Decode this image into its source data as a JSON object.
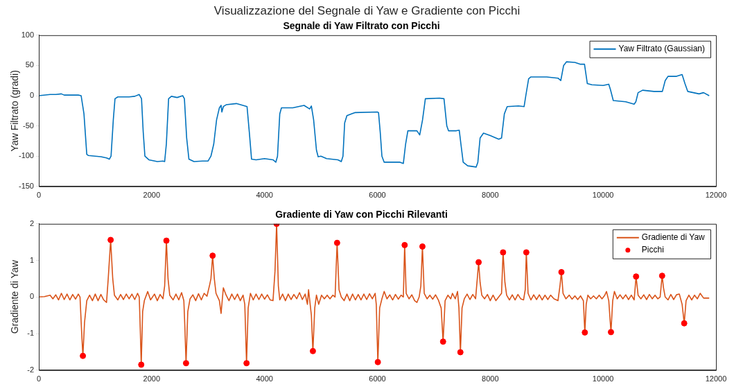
{
  "chart_data": [
    {
      "type": "line",
      "title": "Visualizzazione del Segnale di Yaw e Gradiente con Picchi",
      "subtitle": "Segnale di Yaw Filtrato con Picchi",
      "ylabel": "Yaw Filtrato (gradi)",
      "xlim": [
        0,
        12000
      ],
      "xticks": [
        0,
        2000,
        4000,
        6000,
        8000,
        10000,
        12000
      ],
      "ylim": [
        -150,
        100
      ],
      "yticks": [
        -150,
        -100,
        -50,
        0,
        50,
        100
      ],
      "legend": "top right",
      "series": [
        {
          "name": "Yaw Filtrato (Gaussian)",
          "color": "#0072bd",
          "x": [
            0,
            200,
            300,
            400,
            450,
            600,
            700,
            750,
            800,
            850,
            880,
            1000,
            1100,
            1200,
            1250,
            1280,
            1320,
            1350,
            1400,
            1500,
            1600,
            1700,
            1780,
            1820,
            1850,
            1880,
            1950,
            2100,
            2200,
            2230,
            2260,
            2300,
            2350,
            2450,
            2550,
            2580,
            2620,
            2660,
            2750,
            2900,
            3000,
            3050,
            3100,
            3150,
            3200,
            3230,
            3244,
            3270,
            3320,
            3500,
            3650,
            3690,
            3730,
            3770,
            3850,
            4000,
            4150,
            4200,
            4230,
            4270,
            4300,
            4500,
            4700,
            4800,
            4830,
            4870,
            4920,
            4950,
            5000,
            5100,
            5300,
            5360,
            5390,
            5420,
            5460,
            5600,
            6000,
            6020,
            6050,
            6080,
            6120,
            6200,
            6400,
            6460,
            6500,
            6540,
            6700,
            6750,
            6800,
            6850,
            7100,
            7180,
            7230,
            7260,
            7400,
            7450,
            7480,
            7520,
            7600,
            7750,
            7780,
            7820,
            7880,
            8000,
            8150,
            8200,
            8250,
            8300,
            8500,
            8600,
            8630,
            8680,
            8720,
            9000,
            9200,
            9250,
            9300,
            9350,
            9500,
            9600,
            9670,
            9720,
            9800,
            10000,
            10100,
            10130,
            10180,
            10400,
            10550,
            10580,
            10620,
            10700,
            10900,
            11050,
            11100,
            11150,
            11300,
            11400,
            11450,
            11500,
            11700,
            11780,
            11880
          ],
          "values": [
            0,
            2,
            2,
            3,
            1,
            1,
            1,
            0,
            -30,
            -97,
            -99,
            -100,
            -101,
            -103,
            -105,
            -100,
            -40,
            -5,
            -2,
            -2,
            -2,
            -1,
            2,
            -5,
            -60,
            -100,
            -106,
            -109,
            -108,
            -109,
            -80,
            -5,
            -1,
            -3,
            0,
            -5,
            -70,
            -105,
            -109,
            -108,
            -108,
            -100,
            -80,
            -40,
            -20,
            -16,
            -27,
            -18,
            -15,
            -13,
            -17,
            -18,
            -60,
            -105,
            -106,
            -104,
            -106,
            -110,
            -100,
            -30,
            -20,
            -20,
            -16,
            -22,
            -17,
            -40,
            -90,
            -101,
            -100,
            -104,
            -106,
            -109,
            -100,
            -45,
            -33,
            -28,
            -27,
            -28,
            -60,
            -100,
            -110,
            -110,
            -110,
            -112,
            -80,
            -58,
            -58,
            -65,
            -40,
            -5,
            -4,
            -5,
            -50,
            -58,
            -58,
            -57,
            -80,
            -110,
            -116,
            -118,
            -110,
            -70,
            -62,
            -66,
            -72,
            -70,
            -30,
            -18,
            -17,
            -18,
            0,
            28,
            31,
            31,
            29,
            25,
            50,
            56,
            55,
            52,
            52,
            20,
            18,
            17,
            19,
            10,
            -8,
            -10,
            -14,
            -10,
            5,
            9,
            7,
            7,
            25,
            32,
            32,
            35,
            20,
            7,
            3,
            5,
            0
          ]
        }
      ]
    },
    {
      "type": "line",
      "title": "Gradiente di Yaw con Picchi Rilevanti",
      "ylabel": "Gradiente di Yaw",
      "xlim": [
        0,
        12000
      ],
      "xticks": [
        0,
        2000,
        4000,
        6000,
        8000,
        10000,
        12000
      ],
      "ylim": [
        -2,
        2
      ],
      "yticks": [
        -2,
        -1,
        0,
        1,
        2
      ],
      "legend": "top right",
      "series": [
        {
          "name": "Gradiente di Yaw",
          "color": "#d95319",
          "x": [
            0,
            100,
            200,
            250,
            300,
            350,
            400,
            450,
            500,
            550,
            600,
            650,
            700,
            730,
            760,
            781,
            810,
            850,
            900,
            950,
            1000,
            1050,
            1100,
            1150,
            1200,
            1230,
            1273,
            1310,
            1340,
            1400,
            1450,
            1500,
            1550,
            1600,
            1650,
            1700,
            1750,
            1780,
            1800,
            1815,
            1840,
            1870,
            1930,
            1980,
            2050,
            2100,
            2150,
            2200,
            2230,
            2261,
            2290,
            2320,
            2380,
            2430,
            2480,
            2530,
            2570,
            2590,
            2609,
            2640,
            2680,
            2730,
            2780,
            2830,
            2880,
            2930,
            2980,
            3030,
            3050,
            3080,
            3110,
            3140,
            3170,
            3200,
            3230,
            3270,
            3320,
            3370,
            3420,
            3470,
            3520,
            3570,
            3620,
            3650,
            3681,
            3710,
            3750,
            3800,
            3850,
            3900,
            3950,
            4000,
            4050,
            4100,
            4150,
            4185,
            4214,
            4245,
            4270,
            4320,
            4370,
            4420,
            4470,
            4520,
            4570,
            4620,
            4670,
            4720,
            4760,
            4780,
            4830,
            4857,
            4890,
            4920,
            4960,
            5010,
            5060,
            5110,
            5160,
            5210,
            5250,
            5286,
            5320,
            5360,
            5410,
            5460,
            5510,
            5560,
            5610,
            5660,
            5710,
            5760,
            5810,
            5860,
            5910,
            5960,
            5980,
            6008,
            6040,
            6080,
            6120,
            6170,
            6220,
            6270,
            6320,
            6370,
            6420,
            6460,
            6483,
            6510,
            6560,
            6610,
            6660,
            6700,
            6740,
            6770,
            6798,
            6830,
            6880,
            6930,
            6980,
            7030,
            7080,
            7130,
            7164,
            7200,
            7250,
            7300,
            7330,
            7380,
            7420,
            7445,
            7471,
            7500,
            7540,
            7590,
            7640,
            7690,
            7740,
            7770,
            7794,
            7820,
            7850,
            7900,
            7950,
            8000,
            8050,
            8100,
            8150,
            8200,
            8227,
            8260,
            8290,
            8340,
            8390,
            8440,
            8490,
            8540,
            8590,
            8620,
            8639,
            8670,
            8720,
            8770,
            8820,
            8870,
            8920,
            8970,
            9020,
            9070,
            9130,
            9200,
            9235,
            9261,
            9290,
            9340,
            9400,
            9450,
            9500,
            9550,
            9600,
            9650,
            9676,
            9700,
            9730,
            9780,
            9830,
            9880,
            9930,
            9980,
            10030,
            10060,
            10100,
            10139,
            10170,
            10200,
            10250,
            10300,
            10350,
            10400,
            10450,
            10500,
            10550,
            10584,
            10620,
            10670,
            10720,
            10770,
            10820,
            10870,
            10920,
            10970,
            11010,
            11046,
            11070,
            11100,
            11150,
            11200,
            11250,
            11300,
            11350,
            11400,
            11437,
            11470,
            11520,
            11570,
            11620,
            11670,
            11720,
            11780,
            11880
          ],
          "values": [
            0,
            0.01,
            0.05,
            -0.05,
            0.06,
            -0.08,
            0.1,
            -0.07,
            0.08,
            -0.08,
            0.07,
            -0.06,
            0.08,
            0,
            -1.0,
            -1.61,
            -0.7,
            -0.1,
            0.05,
            -0.1,
            0.08,
            -0.1,
            0.07,
            -0.08,
            -0.15,
            0.5,
            1.56,
            0.5,
            0.05,
            -0.08,
            0.07,
            -0.07,
            0.08,
            -0.05,
            0.08,
            -0.07,
            0.1,
            0,
            -1.0,
            -1.85,
            -0.4,
            -0.1,
            0.15,
            -0.08,
            0.08,
            -0.1,
            0.07,
            -0.05,
            0.3,
            1.54,
            0.5,
            0.05,
            -0.08,
            0.08,
            -0.08,
            0.12,
            -0.1,
            -0.9,
            -1.81,
            -0.4,
            -0.05,
            0.06,
            -0.1,
            0.09,
            -0.08,
            0.1,
            0.02,
            0.35,
            0.5,
            1.13,
            0.5,
            0.1,
            0,
            -0.1,
            -0.45,
            0.25,
            0.05,
            -0.1,
            0.08,
            -0.07,
            0.08,
            -0.1,
            0.05,
            -0.2,
            -1.81,
            -0.3,
            0.1,
            -0.08,
            0.08,
            -0.07,
            0.08,
            -0.06,
            0.06,
            -0.08,
            -0.1,
            0.7,
            2.0,
            0.3,
            -0.08,
            0.08,
            -0.1,
            0.08,
            -0.07,
            0.07,
            -0.05,
            0.12,
            -0.07,
            0.08,
            -0.2,
            0.2,
            -0.5,
            -1.48,
            -0.3,
            0.05,
            -0.2,
            0.05,
            -0.05,
            0.05,
            -0.05,
            0.05,
            0,
            1.48,
            0.2,
            0,
            -0.1,
            0.08,
            -0.1,
            0.08,
            -0.08,
            0.07,
            -0.08,
            0.08,
            -0.07,
            0.09,
            -0.05,
            0.1,
            -0.2,
            -1.78,
            -0.3,
            -0.05,
            0.15,
            -0.05,
            0.06,
            -0.08,
            0.07,
            -0.06,
            0.05,
            0,
            1.42,
            0.1,
            -0.05,
            0.06,
            -0.1,
            -0.15,
            0,
            0.3,
            1.38,
            0.1,
            -0.05,
            0.05,
            -0.06,
            0.06,
            -0.08,
            -0.3,
            -1.22,
            -0.1,
            0.05,
            -0.05,
            0.1,
            -0.05,
            0.15,
            -0.3,
            -1.51,
            -0.3,
            -0.05,
            0.08,
            -0.07,
            0.07,
            -0.05,
            0.5,
            0.95,
            0.4,
            0.05,
            -0.05,
            0.07,
            -0.1,
            0.05,
            -0.1,
            0,
            0.1,
            1.22,
            0.4,
            0.05,
            -0.08,
            0.06,
            -0.08,
            0.07,
            -0.05,
            -0.08,
            0.2,
            1.22,
            0.1,
            -0.08,
            0.06,
            -0.07,
            0.06,
            -0.08,
            0.05,
            -0.07,
            0.05,
            -0.05,
            -0.1,
            0.3,
            0.68,
            0.1,
            -0.05,
            0.05,
            -0.06,
            0.03,
            -0.07,
            0.03,
            -0.1,
            -0.97,
            -0.2,
            0.05,
            -0.05,
            0.03,
            -0.05,
            0.05,
            -0.05,
            0.05,
            0.15,
            -0.1,
            -0.96,
            -0.1,
            0.15,
            -0.05,
            0.06,
            -0.05,
            0.06,
            -0.07,
            0.05,
            -0.08,
            0.56,
            0.05,
            -0.05,
            0.06,
            -0.07,
            0.07,
            -0.05,
            0.05,
            -0.05,
            0,
            0.58,
            0.25,
            0,
            -0.08,
            0.07,
            -0.07,
            0.06,
            0.08,
            -0.2,
            -0.72,
            -0.1,
            0.05,
            -0.08,
            0.05,
            -0.05,
            0.1,
            -0.03,
            -0.03
          ]
        },
        {
          "name": "Picchi",
          "type": "scatter",
          "color": "#ff0000",
          "x": [
            781,
            1273,
            1815,
            2261,
            2609,
            3080,
            3681,
            4214,
            4857,
            5286,
            6008,
            6483,
            6798,
            7164,
            7471,
            7794,
            8227,
            8639,
            9261,
            9676,
            10139,
            10584,
            11046,
            11437
          ],
          "values": [
            -1.61,
            1.56,
            -1.85,
            1.54,
            -1.81,
            1.13,
            -1.81,
            2.0,
            -1.48,
            1.48,
            -1.78,
            1.42,
            1.38,
            -1.22,
            -1.51,
            0.95,
            1.22,
            1.22,
            0.68,
            -0.97,
            -0.96,
            0.56,
            0.58,
            -0.72
          ]
        }
      ]
    }
  ]
}
